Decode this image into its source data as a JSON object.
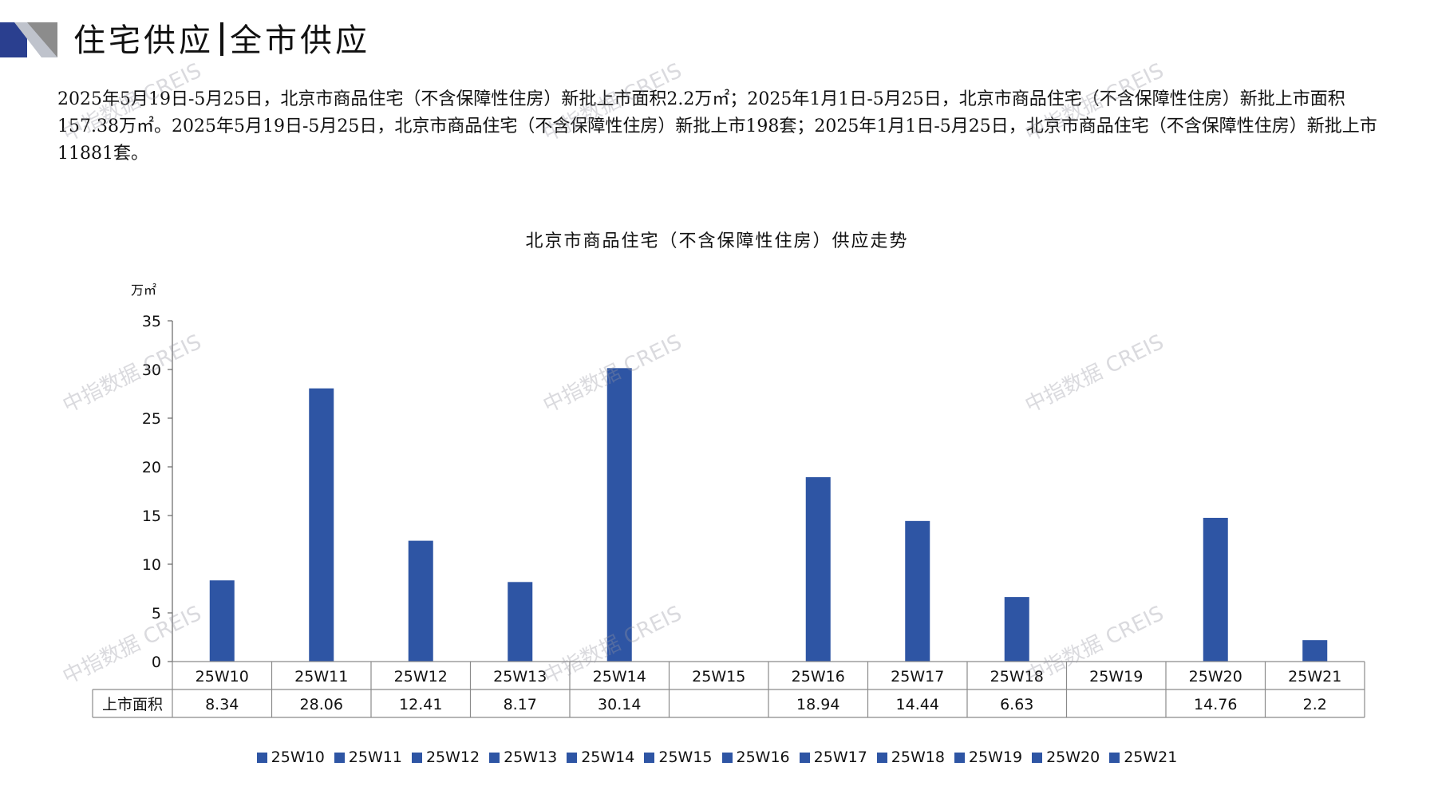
{
  "header": {
    "title_left": "住宅供应",
    "title_right": "全市供应"
  },
  "summary": "2025年5月19日-5月25日，北京市商品住宅（不含保障性住房）新批上市面积2.2万㎡；2025年1月1日-5月25日，北京市商品住宅（不含保障性住房）新批上市面积157.38万㎡。2025年5月19日-5月25日，北京市商品住宅（不含保障性住房）新批上市198套；2025年1月1日-5月25日，北京市商品住宅（不含保障性住房）新批上市11881套。",
  "watermark": "中指数据 CREIS",
  "colors": {
    "bar": "#2E55A4",
    "accent_dark": "#2A3F8F",
    "grey": "#8C8C8C"
  },
  "chart_data": {
    "type": "bar",
    "title": "北京市商品住宅（不含保障性住房）供应走势",
    "ylabel": "万㎡",
    "ylim": [
      0,
      35
    ],
    "yticks": [
      0,
      5,
      10,
      15,
      20,
      25,
      30,
      35
    ],
    "categories": [
      "25W10",
      "25W11",
      "25W12",
      "25W13",
      "25W14",
      "25W15",
      "25W16",
      "25W17",
      "25W18",
      "25W19",
      "25W20",
      "25W21"
    ],
    "series": [
      {
        "name": "上市面积",
        "values": [
          8.34,
          28.06,
          12.41,
          8.17,
          30.14,
          null,
          18.94,
          14.44,
          6.63,
          null,
          14.76,
          2.2
        ]
      }
    ],
    "table_labels": [
      "8.34",
      "28.06",
      "12.41",
      "8.17",
      "30.14",
      "",
      "18.94",
      "14.44",
      "6.63",
      "",
      "14.76",
      "2.2"
    ],
    "legend": [
      "25W10",
      "25W11",
      "25W12",
      "25W13",
      "25W14",
      "25W15",
      "25W16",
      "25W17",
      "25W18",
      "25W19",
      "25W20",
      "25W21"
    ],
    "legend_position": "bottom",
    "grid": false
  }
}
